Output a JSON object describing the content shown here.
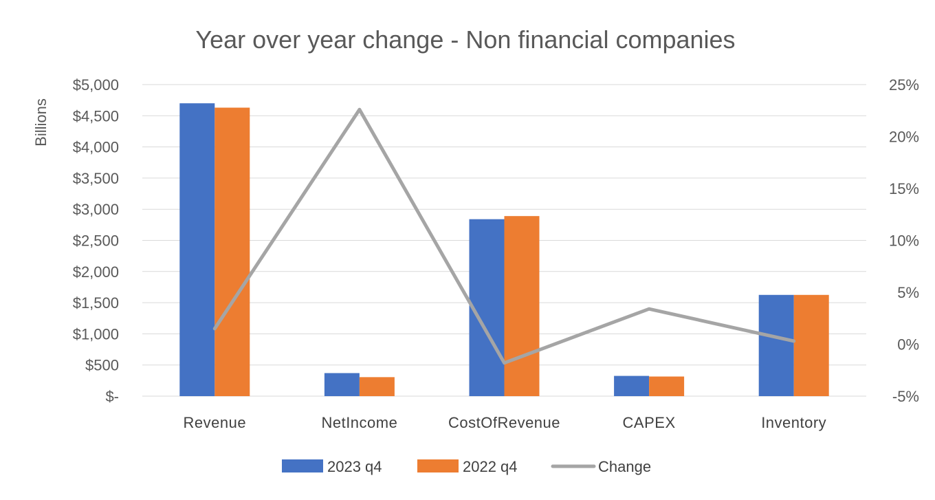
{
  "chart_data": {
    "type": "bar",
    "title": "Year over year change - Non financial companies",
    "ylabel": "Billions",
    "categories": [
      "Revenue",
      "NetIncome",
      "CostOfRevenue",
      "CAPEX",
      "Inventory"
    ],
    "ylim": [
      0,
      5000
    ],
    "y2lim": [
      -0.05,
      0.25
    ],
    "y_ticks": [
      "$-",
      "$500",
      "$1,000",
      "$1,500",
      "$2,000",
      "$2,500",
      "$3,000",
      "$3,500",
      "$4,000",
      "$4,500",
      "$5,000"
    ],
    "y2_ticks": [
      "-5%",
      "0%",
      "5%",
      "10%",
      "15%",
      "20%",
      "25%"
    ],
    "series": [
      {
        "name": "2023 q4",
        "type": "bar",
        "axis": "left",
        "color": "#4472c4",
        "values": [
          4700,
          370,
          2840,
          325,
          1625
        ]
      },
      {
        "name": "2022 q4",
        "type": "bar",
        "axis": "left",
        "color": "#ed7d31",
        "values": [
          4630,
          305,
          2890,
          315,
          1625
        ]
      },
      {
        "name": "Change",
        "type": "line",
        "axis": "right",
        "color": "#a5a5a5",
        "values": [
          0.015,
          0.226,
          -0.018,
          0.034,
          0.003
        ]
      }
    ],
    "grid": true,
    "legend": "bottom"
  }
}
